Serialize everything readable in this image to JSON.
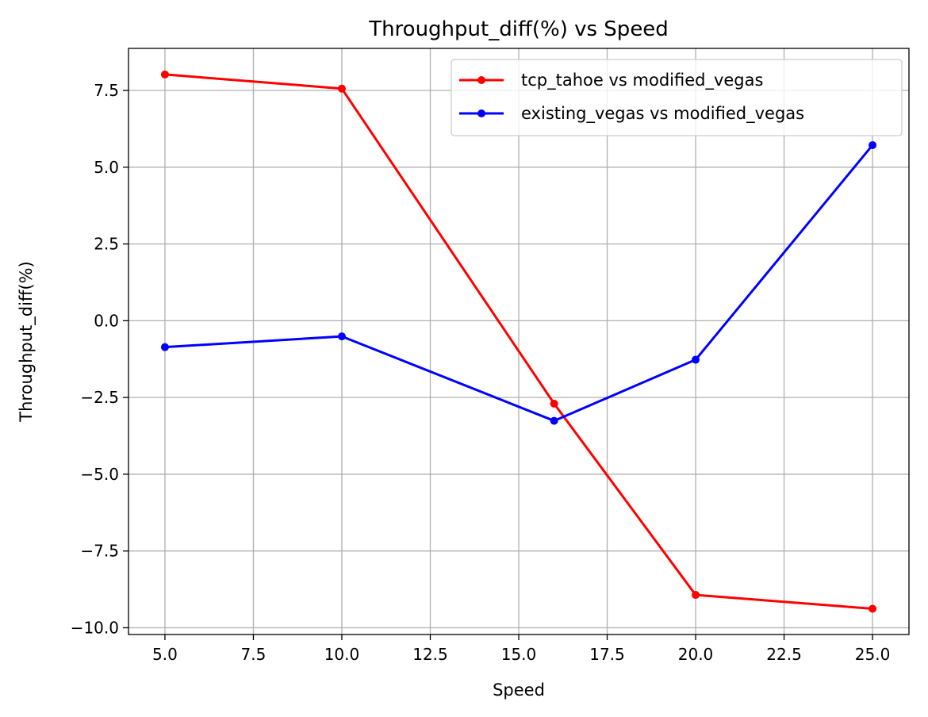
{
  "chart_data": {
    "type": "line",
    "title": "Throughput_diff(%) vs Speed",
    "xlabel": "Speed",
    "ylabel": "Throughput_diff(%)",
    "x": [
      5,
      10,
      16,
      20,
      25
    ],
    "xlim": [
      3.97,
      26.03
    ],
    "ylim": [
      -10.22,
      8.87
    ],
    "xticks": [
      5.0,
      7.5,
      10.0,
      12.5,
      15.0,
      17.5,
      20.0,
      22.5,
      25.0
    ],
    "xtick_labels": [
      "5.0",
      "7.5",
      "10.0",
      "12.5",
      "15.0",
      "17.5",
      "20.0",
      "22.5",
      "25.0"
    ],
    "yticks": [
      -10.0,
      -7.5,
      -5.0,
      -2.5,
      0.0,
      2.5,
      5.0,
      7.5
    ],
    "ytick_labels": [
      "−10.0",
      "−7.5",
      "−5.0",
      "−2.5",
      "0.0",
      "2.5",
      "5.0",
      "7.5"
    ],
    "grid": true,
    "legend_position": "top-right",
    "series": [
      {
        "name": "tcp_tahoe vs modified_vegas",
        "color": "#ff0000",
        "marker": "circle",
        "values": [
          8.02,
          7.56,
          -2.7,
          -8.93,
          -9.38
        ]
      },
      {
        "name": "existing_vegas vs modified_vegas",
        "color": "#0000ff",
        "marker": "circle",
        "values": [
          -0.86,
          -0.51,
          -3.26,
          -1.27,
          5.72
        ]
      }
    ]
  }
}
